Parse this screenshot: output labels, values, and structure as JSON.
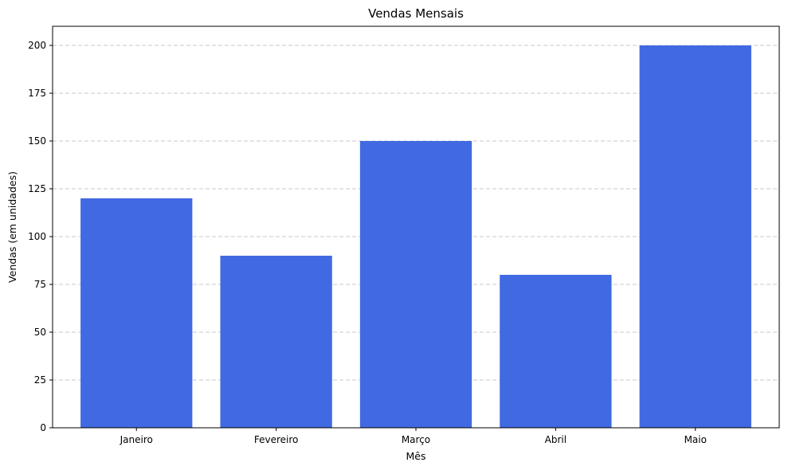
{
  "chart_data": {
    "type": "bar",
    "title": "Vendas Mensais",
    "xlabel": "Mês",
    "ylabel": "Vendas (em unidades)",
    "categories": [
      "Janeiro",
      "Fevereiro",
      "Março",
      "Abril",
      "Maio"
    ],
    "values": [
      120,
      90,
      150,
      80,
      200
    ],
    "ylim": [
      0,
      210
    ],
    "yticks": [
      "0",
      "25",
      "50",
      "75",
      "100",
      "125",
      "150",
      "175",
      "200"
    ],
    "grid": "y-axis dashed",
    "bar_color": "#4169e1",
    "grid_color": "#c8c8c8"
  }
}
